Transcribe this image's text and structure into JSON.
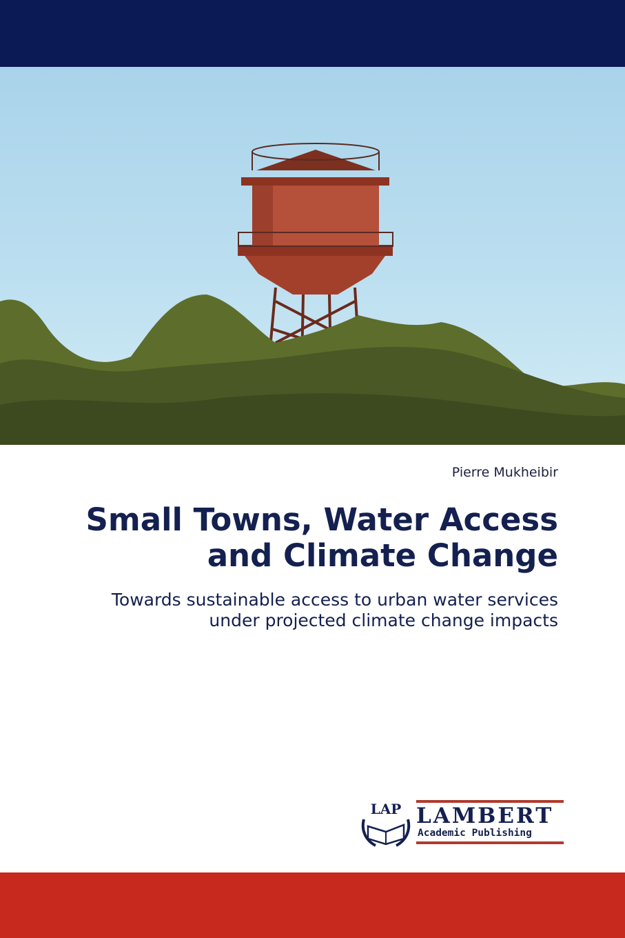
{
  "cover": {
    "author": "Pierre Mukheibir",
    "title_line1": "Small Towns, Water Access",
    "title_line2": "and Climate Change",
    "subtitle_line1": "Towards sustainable access to urban water services",
    "subtitle_line2": "under projected climate change impacts",
    "colors": {
      "top_band": "#0b1a55",
      "bottom_band": "#c7291f",
      "title": "#14204f"
    }
  },
  "publisher": {
    "logo_mark": "LAP",
    "name": "LAMBERT",
    "tagline": "Academic Publishing"
  }
}
